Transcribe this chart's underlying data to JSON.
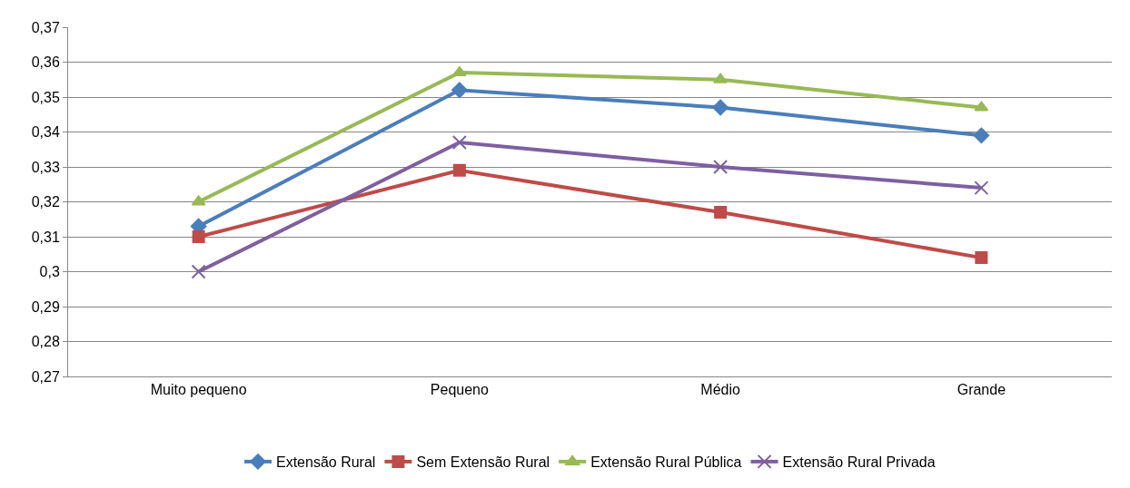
{
  "chart_data": {
    "type": "line",
    "categories": [
      "Muito pequeno",
      "Pequeno",
      "Médio",
      "Grande"
    ],
    "series": [
      {
        "name": "Extensão Rural",
        "color": "#4a7ebb",
        "marker": "diamond",
        "values": [
          0.313,
          0.352,
          0.347,
          0.339
        ]
      },
      {
        "name": "Sem Extensão Rural",
        "color": "#be4b48",
        "marker": "square",
        "values": [
          0.31,
          0.329,
          0.317,
          0.304
        ]
      },
      {
        "name": "Extensão Rural Pública",
        "color": "#98b954",
        "marker": "triangle",
        "values": [
          0.32,
          0.357,
          0.355,
          0.347
        ]
      },
      {
        "name": "Extensão Rural Privada",
        "color": "#7d60a0",
        "marker": "cross",
        "values": [
          0.3,
          0.337,
          0.33,
          0.324
        ]
      }
    ],
    "ylim": [
      0.27,
      0.37
    ],
    "yticks": [
      {
        "value": 0.27,
        "label": "0,27"
      },
      {
        "value": 0.28,
        "label": "0,28"
      },
      {
        "value": 0.29,
        "label": "0,29"
      },
      {
        "value": 0.3,
        "label": "0,3"
      },
      {
        "value": 0.31,
        "label": "0,31"
      },
      {
        "value": 0.32,
        "label": "0,32"
      },
      {
        "value": 0.33,
        "label": "0,33"
      },
      {
        "value": 0.34,
        "label": "0,34"
      },
      {
        "value": 0.35,
        "label": "0,35"
      },
      {
        "value": 0.36,
        "label": "0,36"
      },
      {
        "value": 0.37,
        "label": "0,37"
      }
    ],
    "grid": "y",
    "legend": "bottom",
    "line_style": "solid"
  }
}
